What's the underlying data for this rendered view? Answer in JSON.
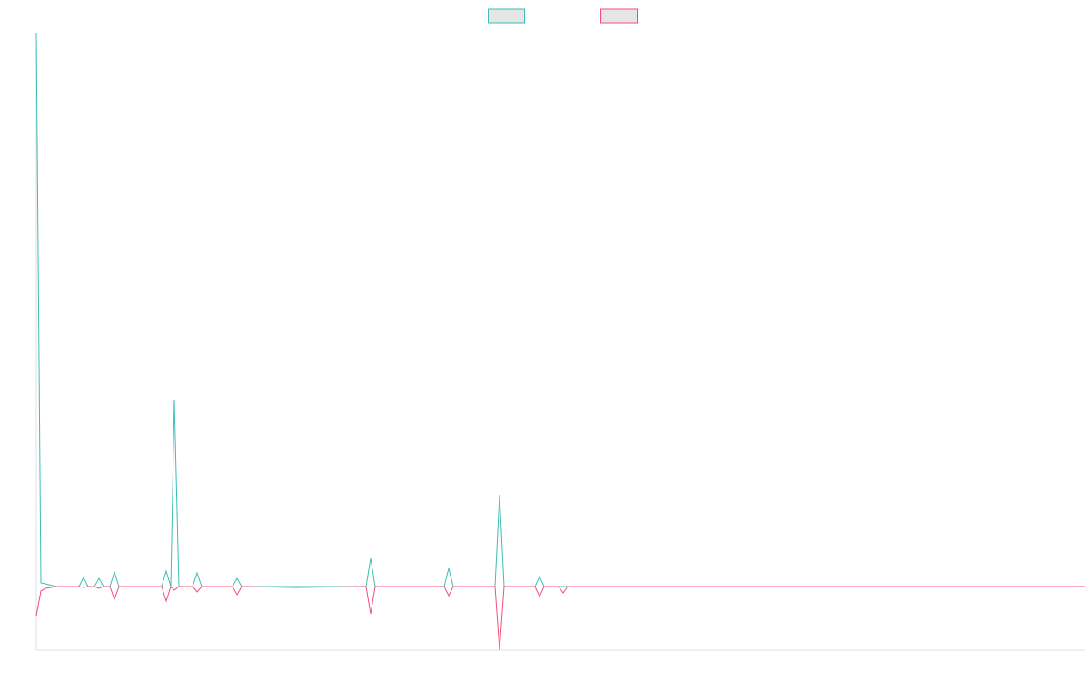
{
  "chart_data": {
    "type": "line",
    "x": [
      0,
      0.5,
      1.0,
      2.2,
      4.7,
      5.2,
      5.7,
      6.4,
      6.9,
      7.4,
      8.1,
      8.6,
      9.1,
      13.8,
      14.3,
      14.8,
      15.2,
      15.7,
      17.2,
      17.7,
      18.2,
      21.6,
      22.1,
      22.6,
      28.6,
      36.3,
      36.8,
      37.3,
      44.9,
      45.4,
      45.9,
      50.5,
      51.0,
      51.5,
      54.9,
      55.4,
      55.9,
      57.5,
      58.0,
      58.5,
      115.5
    ],
    "series": [
      {
        "color": "#3dbdb5",
        "values": [
          61,
          0.4,
          0.3,
          0,
          0,
          1.0,
          0,
          0,
          0.9,
          0,
          0,
          1.6,
          0,
          0,
          1.7,
          0,
          20.6,
          0,
          0,
          1.5,
          0,
          0,
          0.9,
          0,
          0,
          0,
          3.1,
          0,
          0,
          2.0,
          0,
          0,
          10.1,
          0,
          0,
          1.1,
          0,
          0,
          0,
          0,
          0
        ]
      },
      {
        "color": "#f0507a",
        "values": [
          -3.2,
          -0.5,
          -0.2,
          0,
          0,
          -0.1,
          0,
          0,
          -0.2,
          0,
          0,
          -1.4,
          0,
          0,
          -1.6,
          0,
          -0.4,
          0,
          0,
          -0.6,
          0,
          0,
          -0.9,
          0,
          -0.1,
          0,
          -3.0,
          0,
          0,
          -1.0,
          0,
          0,
          -7.0,
          0,
          0,
          -1.1,
          0,
          0,
          -0.7,
          0,
          0
        ]
      }
    ],
    "xlim": [
      0,
      115.5
    ],
    "ylim": [
      -7,
      61
    ],
    "legend": "top"
  }
}
